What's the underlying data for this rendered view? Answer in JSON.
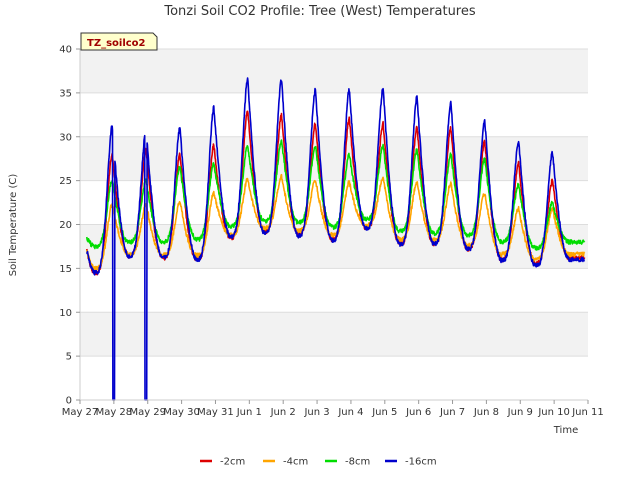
{
  "chart_data": {
    "type": "line",
    "title": "Tonzi Soil CO2 Profile: Tree (West) Temperatures",
    "xlabel": "Time",
    "ylabel": "Soil Temperature (C)",
    "ylim": [
      0,
      40
    ],
    "xlim": [
      0,
      15
    ],
    "yticks": [
      0,
      5,
      10,
      15,
      20,
      25,
      30,
      35,
      40
    ],
    "xticks": [
      {
        "pos": 0,
        "label": "May 27"
      },
      {
        "pos": 1,
        "label": "May 28"
      },
      {
        "pos": 2,
        "label": "May 29"
      },
      {
        "pos": 3,
        "label": "May 30"
      },
      {
        "pos": 4,
        "label": "May 31"
      },
      {
        "pos": 5,
        "label": "Jun 1"
      },
      {
        "pos": 6,
        "label": "Jun 2"
      },
      {
        "pos": 7,
        "label": "Jun 3"
      },
      {
        "pos": 8,
        "label": "Jun 4"
      },
      {
        "pos": 9,
        "label": "Jun 5"
      },
      {
        "pos": 10,
        "label": "Jun 6"
      },
      {
        "pos": 11,
        "label": "Jun 7"
      },
      {
        "pos": 12,
        "label": "Jun 8"
      },
      {
        "pos": 13,
        "label": "Jun 9"
      },
      {
        "pos": 14,
        "label": "Jun 10"
      },
      {
        "pos": 15,
        "label": "Jun 11"
      }
    ],
    "badge": "TZ_soilco2",
    "days": {
      "minTimes": [
        0.45,
        1.45,
        2.45,
        3.45,
        4.45,
        5.45,
        6.45,
        7.45,
        8.45,
        9.45,
        10.45,
        11.45,
        12.45,
        13.45,
        14.45
      ],
      "maxTimes": [
        0.95,
        1.95,
        2.95,
        3.95,
        4.95,
        5.95,
        6.95,
        7.95,
        8.95,
        9.95,
        10.95,
        11.95,
        12.95,
        13.95
      ]
    },
    "series": [
      {
        "name": "-2cm",
        "color": "#dd0000",
        "start": 17.0,
        "end": 16.2,
        "mins": [
          14.5,
          16.4,
          16.2,
          16.0,
          18.5,
          19.2,
          18.8,
          18.3,
          19.6,
          17.8,
          17.8,
          17.2,
          16.0,
          15.6,
          16.2
        ],
        "maxs": [
          28.0,
          28.5,
          28.0,
          29.0,
          33.0,
          32.5,
          31.5,
          32.0,
          31.5,
          31.0,
          31.0,
          29.5,
          27.0,
          25.0
        ]
      },
      {
        "name": "-4cm",
        "color": "#ffa500",
        "start": 17.0,
        "end": 16.6,
        "mins": [
          15.0,
          16.6,
          16.5,
          16.5,
          18.8,
          19.6,
          19.3,
          18.8,
          19.9,
          18.3,
          18.3,
          17.6,
          16.6,
          16.0,
          16.6
        ],
        "maxs": [
          22.3,
          22.3,
          22.6,
          23.6,
          25.2,
          25.5,
          25.1,
          24.8,
          25.4,
          24.9,
          24.7,
          23.6,
          21.8,
          21.8
        ]
      },
      {
        "name": "-8cm",
        "color": "#00dd00",
        "start": 18.5,
        "end": 18.0,
        "mins": [
          17.5,
          18.0,
          18.0,
          18.3,
          19.8,
          20.4,
          20.2,
          19.7,
          20.6,
          19.2,
          19.0,
          18.8,
          18.0,
          17.3,
          18.0
        ],
        "maxs": [
          25.0,
          25.0,
          26.5,
          27.0,
          29.0,
          29.5,
          29.0,
          28.0,
          29.0,
          28.5,
          28.0,
          27.5,
          24.5,
          22.5
        ]
      },
      {
        "name": "-16cm",
        "color": "#0000cc",
        "start": 17.0,
        "end": 16.0,
        "mins": [
          14.5,
          16.4,
          16.2,
          16.0,
          18.6,
          19.0,
          18.7,
          18.2,
          19.6,
          17.7,
          17.8,
          17.2,
          15.9,
          15.3,
          16.0
        ],
        "maxs": [
          31.2,
          30.8,
          31.0,
          33.3,
          36.5,
          36.5,
          35.3,
          35.3,
          35.5,
          34.5,
          33.8,
          31.8,
          29.5,
          28.2
        ],
        "dropouts": [
          1.0,
          1.95
        ]
      }
    ],
    "legend": [
      {
        "name": "-2cm",
        "color": "#dd0000"
      },
      {
        "name": "-4cm",
        "color": "#ffa500"
      },
      {
        "name": "-8cm",
        "color": "#00dd00"
      },
      {
        "name": "-16cm",
        "color": "#0000cc"
      }
    ]
  }
}
